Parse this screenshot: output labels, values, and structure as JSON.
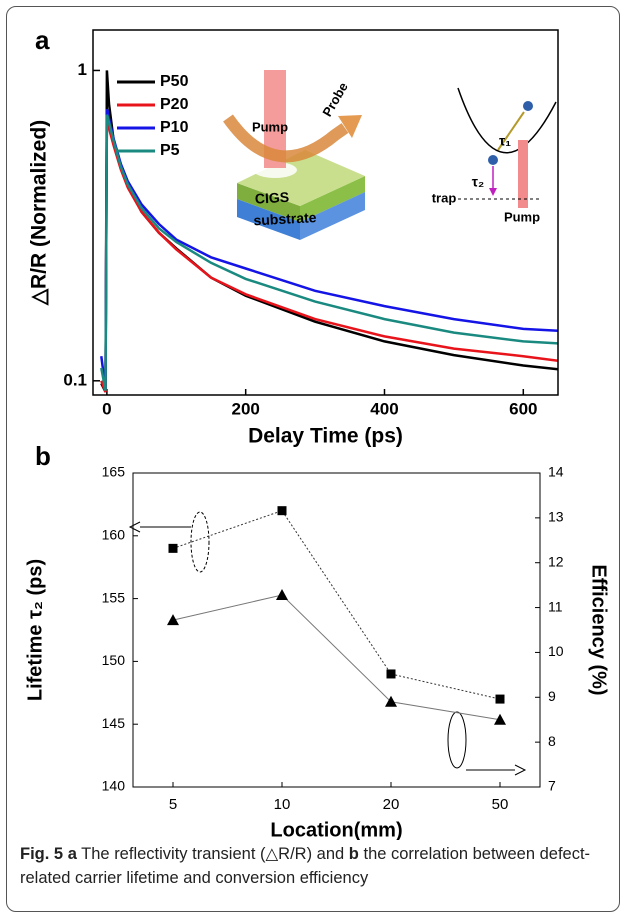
{
  "chart_data": [
    {
      "type": "line",
      "panel": "a",
      "y_label": "△R/R (Normalized)",
      "x_label": "Delay Time (ps)",
      "log_y": true,
      "xlim": [
        -20,
        650
      ],
      "ylim": [
        0.09,
        1.35
      ],
      "xticks": [
        0,
        200,
        400,
        600
      ],
      "yticks": [
        0.1,
        1
      ],
      "legend": "upper left",
      "x": [
        -8,
        -2,
        0,
        1,
        3,
        10,
        20,
        30,
        50,
        75,
        100,
        150,
        200,
        300,
        400,
        500,
        600,
        650
      ],
      "series": [
        {
          "name": "P50",
          "color": "#000000",
          "values": [
            0.098,
            0.092,
            1.0,
            0.92,
            0.78,
            0.59,
            0.49,
            0.43,
            0.35,
            0.3,
            0.267,
            0.215,
            0.188,
            0.155,
            0.134,
            0.121,
            0.112,
            0.109
          ]
        },
        {
          "name": "P20",
          "color": "#e8141b",
          "values": [
            0.1,
            0.092,
            0.69,
            0.68,
            0.65,
            0.57,
            0.48,
            0.42,
            0.35,
            0.3,
            0.265,
            0.215,
            0.19,
            0.158,
            0.139,
            0.127,
            0.12,
            0.116
          ]
        },
        {
          "name": "P10",
          "color": "#1414e6",
          "values": [
            0.12,
            0.094,
            0.75,
            0.74,
            0.7,
            0.6,
            0.5,
            0.44,
            0.37,
            0.32,
            0.285,
            0.25,
            0.23,
            0.195,
            0.174,
            0.158,
            0.147,
            0.145
          ]
        },
        {
          "name": "P5",
          "color": "#1a8a80",
          "values": [
            0.11,
            0.093,
            0.72,
            0.71,
            0.68,
            0.59,
            0.49,
            0.43,
            0.36,
            0.31,
            0.28,
            0.24,
            0.213,
            0.18,
            0.158,
            0.143,
            0.134,
            0.132
          ]
        }
      ],
      "annotations": [
        "Pump",
        "Probe",
        "CIGS",
        "substrate",
        "τ₁",
        "τ₂",
        "trap",
        "Pump"
      ]
    },
    {
      "type": "line",
      "panel": "b",
      "y_label": "Lifetime τ₂ (ps)",
      "y2_label": "Efficiency (%)",
      "x_label": "Location(mm)",
      "categories": [
        "5",
        "10",
        "20",
        "50"
      ],
      "ylim": [
        140,
        165
      ],
      "yticks": [
        140,
        145,
        150,
        155,
        160,
        165
      ],
      "y2lim": [
        7,
        14
      ],
      "y2ticks": [
        7,
        8,
        9,
        10,
        11,
        12,
        13,
        14
      ],
      "series": [
        {
          "color": "#000000",
          "marker": "square",
          "line_style": "dotted",
          "values": [
            159,
            162,
            149,
            147
          ]
        },
        {
          "color": "#000000",
          "marker": "triangle",
          "line_style": "solid",
          "axis": "y2",
          "values": [
            10.72,
            11.28,
            8.9,
            8.5
          ]
        }
      ]
    }
  ],
  "caption": [
    {
      "text": "Fig. 5",
      "bold": true
    },
    {
      "text": "a",
      "bold": true
    },
    {
      "text": "The reflectivity transient (△R/R) and",
      "bold": false
    },
    {
      "text": "b",
      "bold": true
    },
    {
      "text": "the correlation between defect-related carrier lifetime and conversion efficiency",
      "bold": false
    }
  ]
}
